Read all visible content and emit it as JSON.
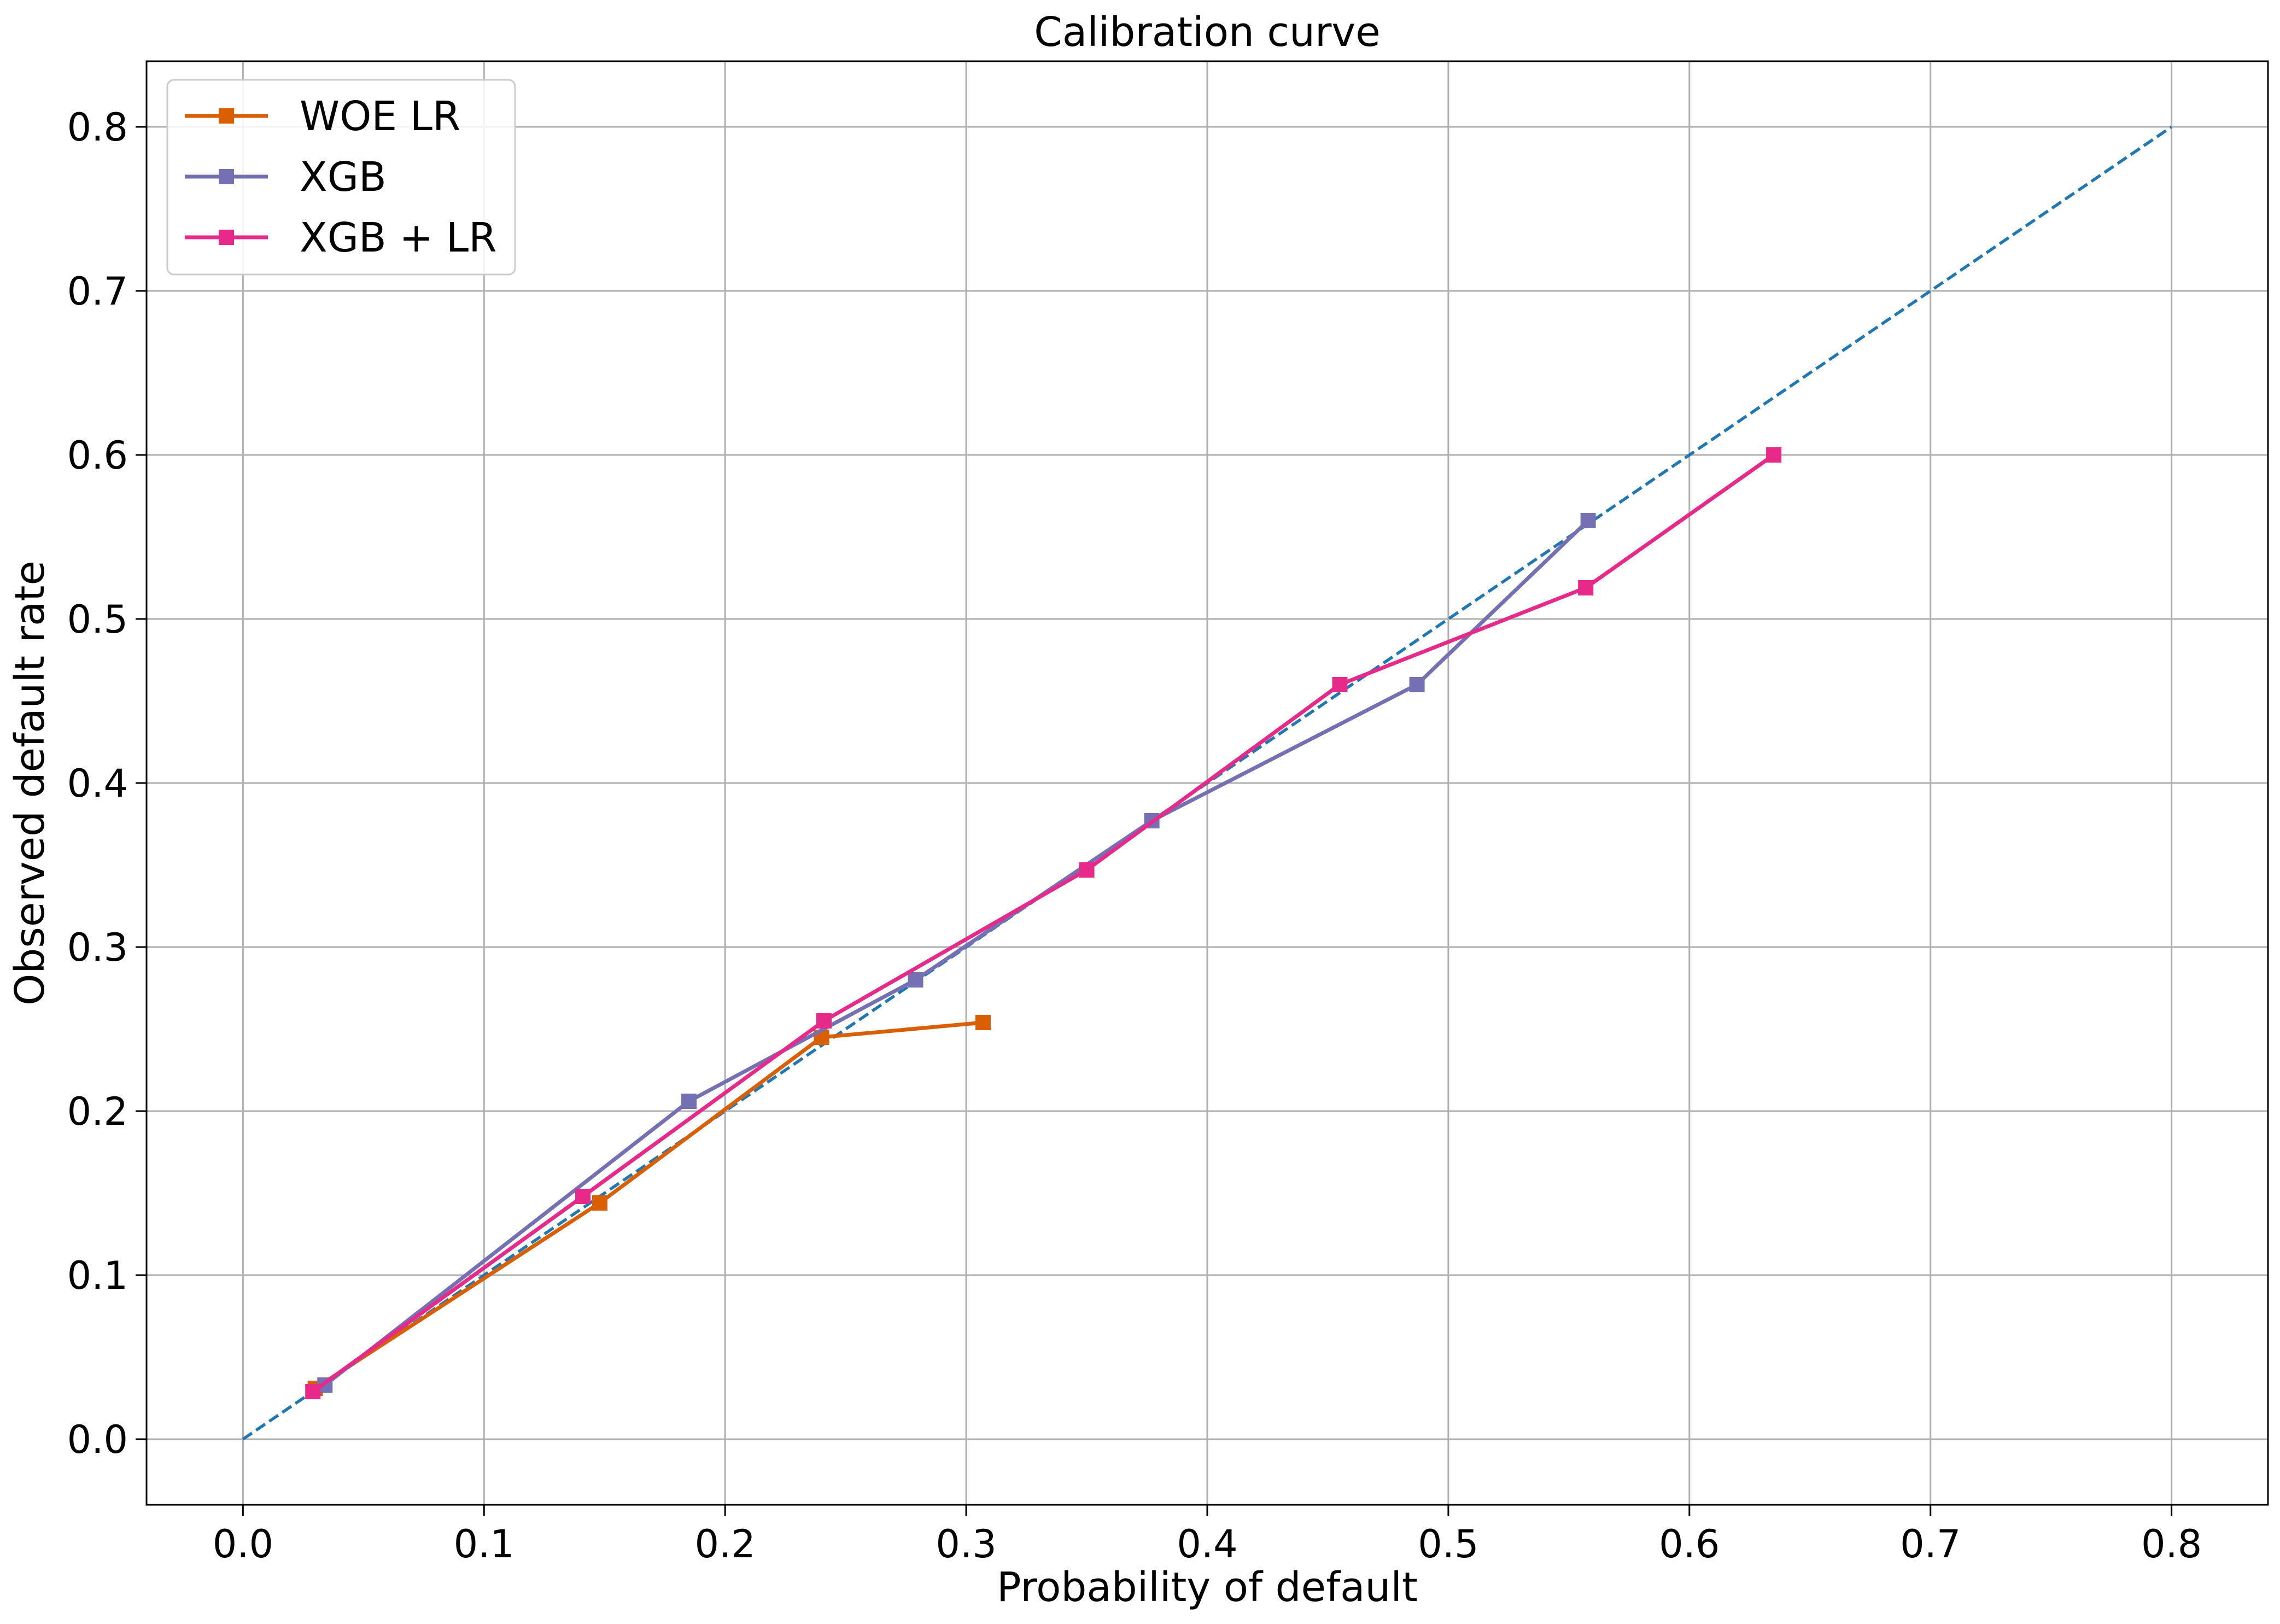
{
  "chart_data": {
    "type": "line",
    "title": "Calibration curve",
    "xlabel": "Probability of default",
    "ylabel": "Observed default rate",
    "xlim": [
      -0.04,
      0.84
    ],
    "ylim": [
      -0.04,
      0.84
    ],
    "xticks": [
      0.0,
      0.1,
      0.2,
      0.3,
      0.4,
      0.5,
      0.6,
      0.7,
      0.8
    ],
    "yticks": [
      0.0,
      0.1,
      0.2,
      0.3,
      0.4,
      0.5,
      0.6,
      0.7,
      0.8
    ],
    "xtick_labels": [
      "0.0",
      "0.1",
      "0.2",
      "0.3",
      "0.4",
      "0.5",
      "0.6",
      "0.7",
      "0.8"
    ],
    "ytick_labels": [
      "0.0",
      "0.1",
      "0.2",
      "0.3",
      "0.4",
      "0.5",
      "0.6",
      "0.7",
      "0.8"
    ],
    "grid": true,
    "legend_position": "top-left",
    "reference_line": {
      "x": [
        0.0,
        0.8
      ],
      "y": [
        0.0,
        0.8
      ],
      "color": "#1f77b4",
      "style": "dashed"
    },
    "series": [
      {
        "name": "WOE LR",
        "color": "#d95f02",
        "marker": "square",
        "x": [
          0.03,
          0.148,
          0.24,
          0.307
        ],
        "y": [
          0.031,
          0.144,
          0.245,
          0.254
        ]
      },
      {
        "name": "XGB",
        "color": "#7570b3",
        "marker": "square",
        "x": [
          0.034,
          0.185,
          0.279,
          0.377,
          0.487,
          0.558
        ],
        "y": [
          0.033,
          0.206,
          0.28,
          0.377,
          0.46,
          0.56
        ]
      },
      {
        "name": "XGB + LR",
        "color": "#e7298a",
        "marker": "square",
        "x": [
          0.029,
          0.141,
          0.241,
          0.35,
          0.455,
          0.557,
          0.635
        ],
        "y": [
          0.029,
          0.148,
          0.255,
          0.347,
          0.46,
          0.519,
          0.6
        ]
      }
    ]
  }
}
